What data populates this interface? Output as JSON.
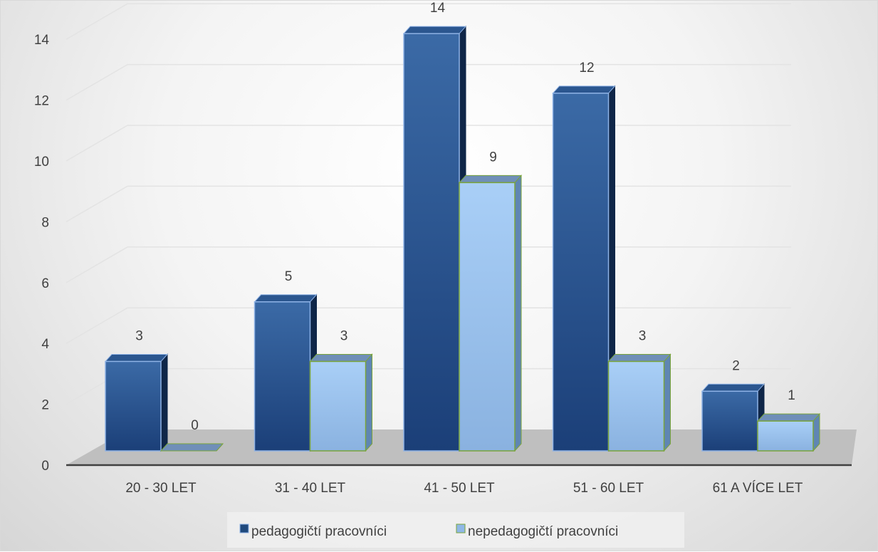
{
  "chart_data": {
    "type": "bar",
    "categories": [
      "20 - 30 LET",
      "31 - 40 LET",
      "41 - 50 LET",
      "51 - 60 LET",
      "61 A VÍCE LET"
    ],
    "series": [
      {
        "name": "pedagogičtí pracovníci",
        "values": [
          3,
          5,
          14,
          12,
          2
        ],
        "color": "#1f497d"
      },
      {
        "name": "nepedagogičtí pracovníci",
        "values": [
          0,
          3,
          9,
          3,
          1
        ],
        "color": "#8fb8e6"
      }
    ],
    "yticks": [
      "0",
      "2",
      "4",
      "6",
      "8",
      "10",
      "12",
      "14"
    ],
    "ylim": [
      0,
      14
    ],
    "grid": true,
    "legend_position": "bottom",
    "style": "3d-clustered-column"
  }
}
